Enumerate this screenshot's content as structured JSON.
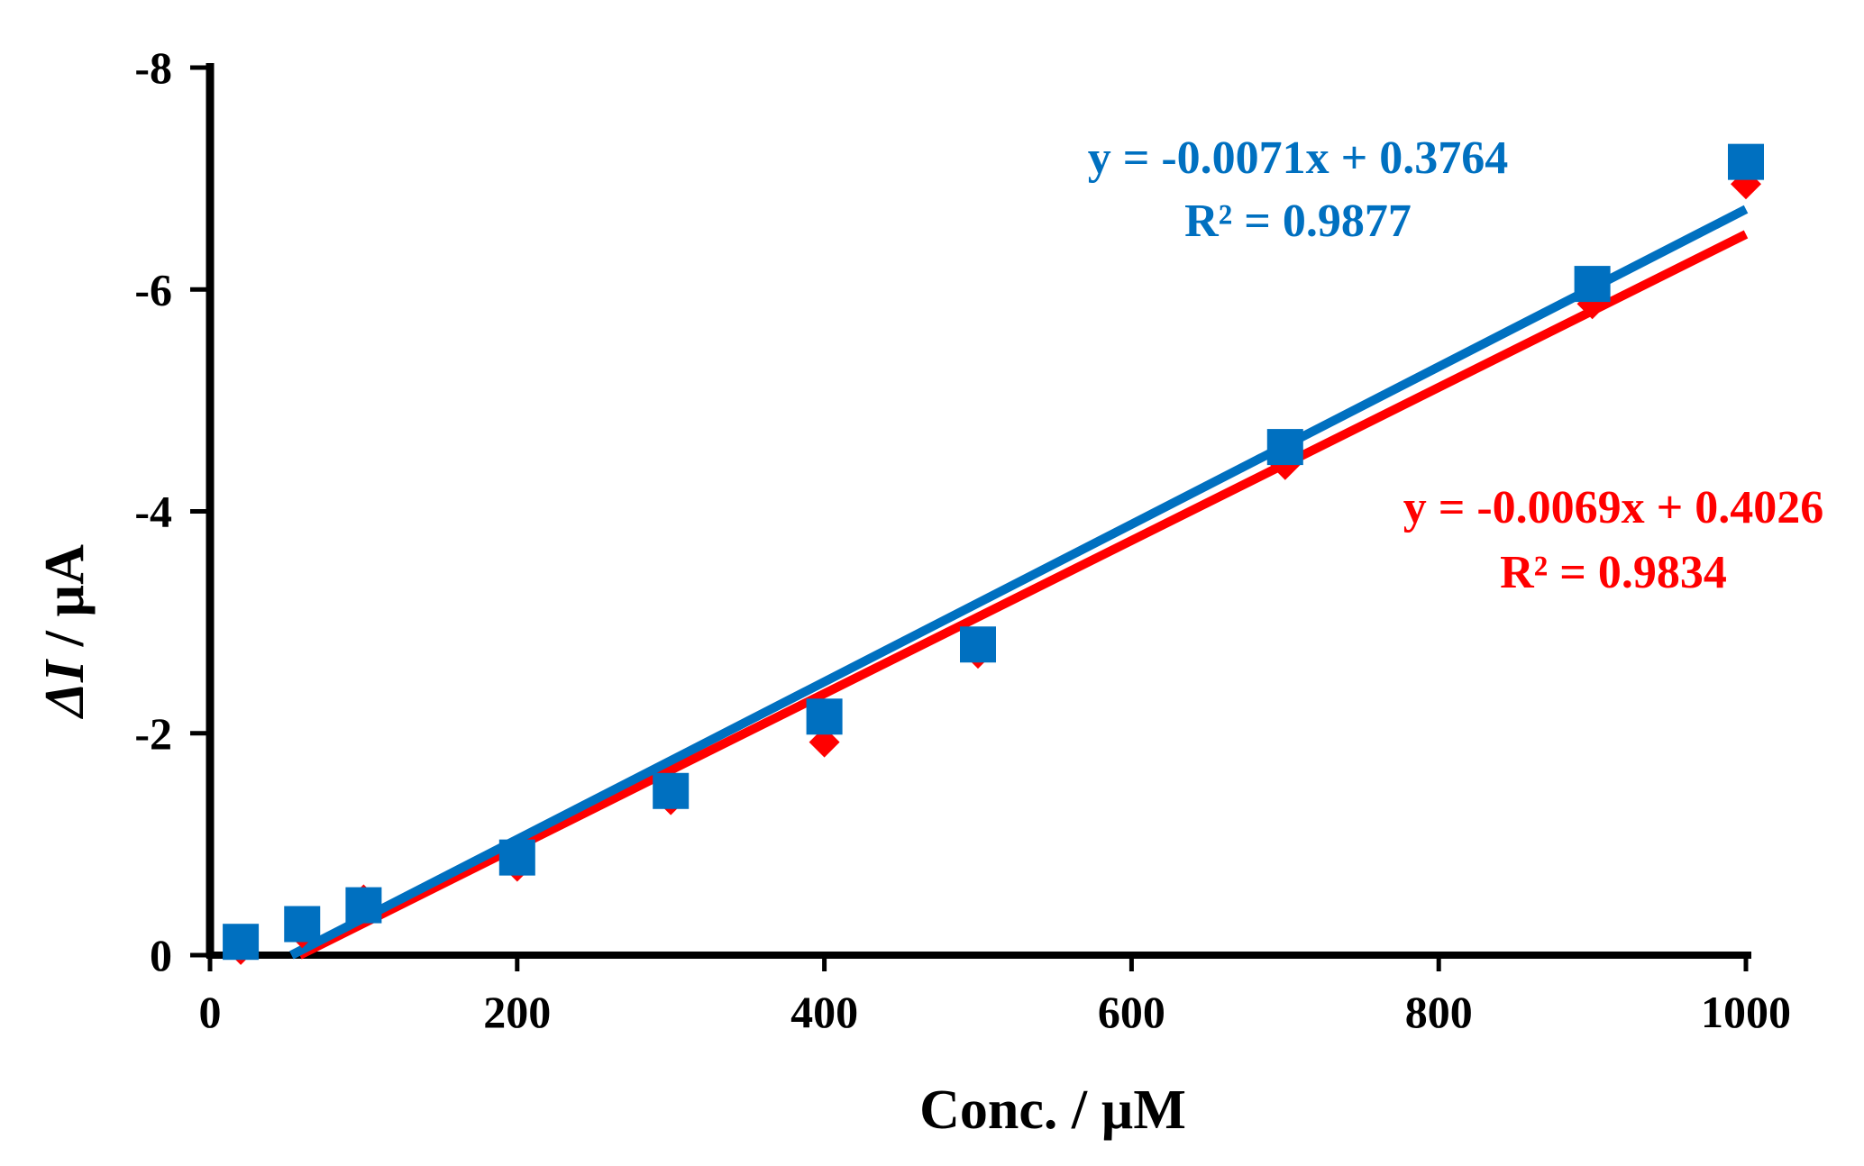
{
  "chart_data": {
    "type": "scatter",
    "title": "",
    "xlabel": "Conc. / µM",
    "ylabel_italic": "ΔI",
    "ylabel_rest": " / µA",
    "xlim": [
      0,
      1000
    ],
    "ylim": [
      0,
      -8
    ],
    "x_ticks": [
      0,
      200,
      400,
      600,
      800,
      1000
    ],
    "y_ticks": [
      0,
      -2,
      -4,
      -6,
      -8
    ],
    "x_tick_labels": [
      "0",
      "200",
      "400",
      "600",
      "800",
      "1000"
    ],
    "y_tick_labels": [
      "0",
      "-2",
      "-4",
      "-6",
      "-8"
    ],
    "grid": false,
    "series": [
      {
        "name": "red",
        "marker": "diamond",
        "color": "#ff0000",
        "x": [
          20,
          60,
          100,
          200,
          300,
          400,
          500,
          700,
          900,
          1000
        ],
        "y": [
          -0.05,
          -0.2,
          -0.5,
          -0.8,
          -1.4,
          -1.92,
          -2.72,
          -4.42,
          -5.87,
          -6.95
        ],
        "trendline": {
          "slope": -0.0069,
          "intercept": 0.4026
        },
        "equation": "y = -0.0069x + 0.4026",
        "r2": "R² = 0.9834"
      },
      {
        "name": "blue",
        "marker": "square",
        "color": "#0070c0",
        "x": [
          20,
          60,
          100,
          200,
          300,
          400,
          500,
          700,
          900,
          1000
        ],
        "y": [
          -0.12,
          -0.28,
          -0.45,
          -0.88,
          -1.48,
          -2.15,
          -2.8,
          -4.58,
          -6.05,
          -7.15
        ],
        "trendline": {
          "slope": -0.0071,
          "intercept": 0.3764
        },
        "equation": "y = -0.0071x + 0.3764",
        "r2": "R² = 0.9877"
      }
    ]
  }
}
